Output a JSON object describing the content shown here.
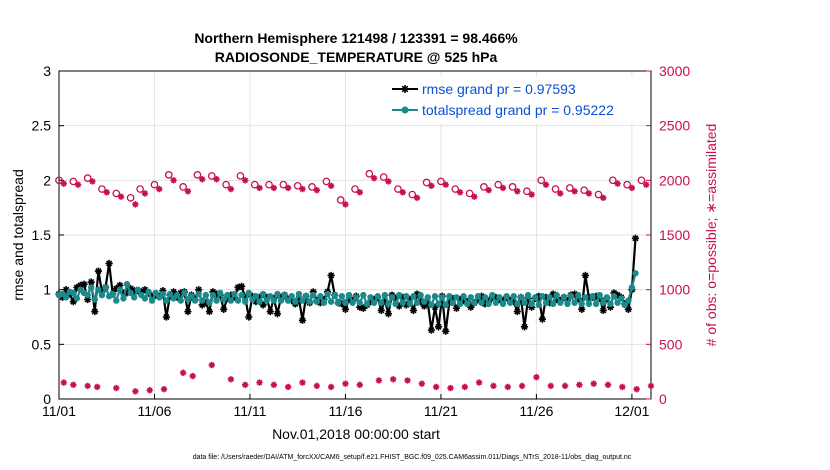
{
  "chart_data": {
    "type": "line",
    "title": "Northern Hemisphere 121498 / 123391 = 98.466%",
    "subtitle": "RADIOSONDE_TEMPERATURE @ 525 hPa",
    "xlabel": "Nov.01,2018 00:00:00 start",
    "ylabel": "rmse and totalspread",
    "ylabel_right": "# of obs: o=possible; ∗=assimilated",
    "footer": "data file: /Users/raeder/DAI/ATM_forcXX/CAM6_setup/f.e21.FHIST_BGC.f09_025.CAM6assim.011/Diags_NTrS_2018-11/obs_diag_output.nc",
    "xlim": [
      0,
      31
    ],
    "ylim": [
      0,
      3
    ],
    "ylim_right": [
      0,
      3000
    ],
    "x_ticks": [
      0,
      5,
      10,
      15,
      20,
      25,
      30
    ],
    "x_tick_labels": [
      "11/01",
      "11/06",
      "11/11",
      "11/16",
      "11/21",
      "11/26",
      "12/01"
    ],
    "y_ticks": [
      0,
      0.5,
      1,
      1.5,
      2,
      2.5,
      3
    ],
    "y_tick_labels": [
      "0",
      "0.5",
      "1",
      "1.5",
      "2",
      "2.5",
      "3"
    ],
    "y_ticks_right": [
      0,
      500,
      1000,
      1500,
      2000,
      2500,
      3000
    ],
    "y_tick_labels_right": [
      "0",
      "500",
      "1000",
      "1500",
      "2000",
      "2500",
      "3000"
    ],
    "grid": true,
    "legend_position": "top-right",
    "colors": {
      "rmse": "#000000",
      "totalspread": "#1a8a8a",
      "obs": "#c8104f",
      "legend_text": "#0a4fd6"
    },
    "series": [
      {
        "name": "rmse grand pr = 0.97593",
        "axis": "left",
        "marker": "asterisk",
        "values": [
          0.96,
          0.93,
          1.0,
          0.96,
          0.89,
          1.02,
          1.04,
          1.05,
          0.91,
          1.07,
          0.8,
          1.17,
          0.98,
          1.02,
          1.24,
          0.96,
          1.01,
          1.04,
          0.97,
          0.97,
          1.01,
          0.99,
          0.99,
          0.98,
          1.0,
          0.97,
          0.94,
          0.95,
          0.94,
          0.99,
          0.75,
          0.95,
          0.98,
          0.93,
          0.97,
          0.98,
          0.8,
          0.95,
          0.91,
          1.0,
          0.86,
          0.88,
          0.8,
          0.98,
          0.96,
          0.95,
          0.82,
          0.92,
          0.95,
          0.93,
          1.02,
          1.03,
          0.93,
          0.75,
          0.94,
          0.89,
          0.93,
          0.86,
          0.93,
          0.8,
          0.92,
          0.78,
          0.93,
          0.95,
          0.91,
          0.9,
          0.87,
          0.92,
          0.72,
          0.94,
          0.88,
          0.98,
          0.9,
          0.88,
          0.91,
          0.98,
          1.13,
          0.95,
          0.88,
          0.87,
          0.82,
          0.91,
          0.9,
          0.94,
          0.84,
          0.83,
          0.86,
          0.89,
          0.91,
          0.93,
          0.81,
          0.9,
          0.78,
          0.95,
          0.92,
          0.85,
          0.93,
          0.86,
          0.91,
          0.81,
          0.96,
          0.89,
          0.85,
          0.88,
          0.63,
          0.84,
          0.66,
          0.94,
          0.62,
          0.88,
          0.92,
          0.83,
          0.91,
          0.9,
          0.89,
          0.84,
          0.88,
          0.91,
          0.94,
          0.87,
          0.89,
          0.93,
          0.93,
          0.91,
          0.9,
          0.93,
          0.9,
          0.89,
          0.8,
          0.93,
          0.66,
          0.92,
          0.84,
          0.92,
          0.94,
          0.73,
          0.93,
          0.88,
          0.96,
          0.91,
          0.9,
          0.93,
          0.9,
          0.95,
          0.96,
          0.92,
          0.82,
          1.13,
          0.93,
          0.93,
          0.94,
          0.92,
          0.81,
          0.92,
          0.84,
          0.97,
          0.95,
          0.93,
          0.87,
          0.82,
          1.0,
          1.47
        ],
        "x_start": 0.0,
        "x_step": 0.1875
      },
      {
        "name": "totalspread grand pr = 0.95222",
        "axis": "left",
        "marker": "filled-circle",
        "values": [
          0.95,
          0.96,
          0.93,
          0.98,
          0.97,
          0.92,
          1.0,
          0.97,
          0.95,
          1.02,
          0.91,
          1.0,
          0.95,
          1.02,
          0.94,
          0.96,
          0.9,
          1.0,
          0.92,
          1.05,
          0.97,
          0.93,
          1.0,
          0.95,
          0.92,
          0.98,
          0.9,
          0.97,
          0.93,
          0.96,
          0.9,
          0.96,
          0.92,
          0.95,
          0.9,
          0.97,
          0.91,
          0.94,
          0.9,
          0.96,
          0.9,
          0.95,
          0.88,
          0.95,
          0.9,
          0.97,
          0.91,
          0.95,
          0.9,
          0.96,
          0.9,
          0.95,
          0.89,
          0.97,
          0.91,
          0.94,
          0.89,
          0.96,
          0.9,
          0.94,
          0.9,
          0.96,
          0.9,
          0.95,
          0.9,
          0.94,
          0.89,
          0.96,
          0.9,
          0.94,
          0.89,
          0.95,
          0.89,
          0.94,
          0.88,
          0.96,
          0.89,
          0.95,
          0.88,
          0.94,
          0.88,
          0.95,
          0.88,
          0.93,
          0.88,
          0.95,
          0.87,
          0.93,
          0.88,
          0.94,
          0.88,
          0.95,
          0.87,
          0.93,
          0.87,
          0.95,
          0.88,
          0.94,
          0.87,
          0.94,
          0.88,
          0.95,
          0.89,
          0.93,
          0.86,
          0.94,
          0.87,
          0.93,
          0.86,
          0.94,
          0.88,
          0.93,
          0.87,
          0.94,
          0.87,
          0.93,
          0.88,
          0.94,
          0.88,
          0.93,
          0.87,
          0.95,
          0.88,
          0.93,
          0.87,
          0.94,
          0.88,
          0.94,
          0.87,
          0.93,
          0.88,
          0.95,
          0.87,
          0.93,
          0.86,
          0.94,
          0.88,
          0.93,
          0.87,
          0.95,
          0.88,
          0.93,
          0.87,
          0.94,
          0.88,
          0.95,
          0.87,
          0.93,
          0.87,
          0.94,
          0.87,
          0.95,
          0.88,
          0.93,
          0.87,
          0.94,
          0.88,
          0.92,
          0.86,
          0.9,
          1.02,
          1.15
        ],
        "x_start": 0.0,
        "x_step": 0.1875
      },
      {
        "name": "obs possible",
        "axis": "right",
        "marker": "open-circle",
        "x": [
          0.0,
          0.75,
          1.5,
          2.25,
          3.0,
          3.75,
          4.25,
          5.0,
          5.75,
          6.5,
          7.25,
          8.0,
          8.75,
          9.5,
          10.25,
          11.0,
          11.75,
          12.5,
          13.25,
          14.0,
          14.75,
          15.5,
          16.25,
          17.0,
          17.75,
          18.5,
          19.25,
          20.0,
          20.75,
          21.5,
          22.25,
          23.0,
          23.75,
          24.5,
          25.25,
          26.0,
          26.75,
          27.5,
          28.25,
          29.0,
          29.75,
          30.5
        ],
        "values": [
          2000,
          1990,
          2020,
          1920,
          1880,
          1840,
          1920,
          1960,
          2050,
          1940,
          2050,
          2040,
          1960,
          2040,
          1960,
          1960,
          1960,
          1950,
          1940,
          1990,
          1820,
          1920,
          2060,
          2030,
          1920,
          1870,
          1980,
          1990,
          1920,
          1880,
          1940,
          1960,
          1940,
          1900,
          2000,
          1920,
          1930,
          1910,
          1870,
          2000,
          1960,
          2000
        ]
      },
      {
        "name": "obs assimilated",
        "axis": "right",
        "marker": "asterisk",
        "x": [
          0.25,
          1.0,
          1.75,
          2.5,
          3.25,
          4.0,
          4.5,
          5.25,
          6.0,
          6.75,
          7.5,
          8.25,
          9.0,
          9.75,
          10.5,
          11.25,
          12.0,
          12.75,
          13.5,
          14.25,
          15.0,
          15.75,
          16.5,
          17.25,
          18.0,
          18.75,
          19.5,
          20.25,
          21.0,
          21.75,
          22.5,
          23.25,
          24.0,
          24.75,
          25.5,
          26.25,
          27.0,
          27.75,
          28.5,
          29.25,
          30.0,
          30.75
        ],
        "values": [
          1970,
          1960,
          1990,
          1890,
          1850,
          1780,
          1880,
          1920,
          2000,
          1900,
          2010,
          2010,
          1920,
          2000,
          1930,
          1930,
          1930,
          1920,
          1910,
          1950,
          1780,
          1890,
          2020,
          1990,
          1890,
          1840,
          1950,
          1960,
          1890,
          1850,
          1910,
          1930,
          1900,
          1870,
          1960,
          1880,
          1900,
          1880,
          1840,
          1970,
          1930,
          1960
        ]
      },
      {
        "name": "obs low",
        "axis": "right",
        "marker": "asterisk",
        "x": [
          0.25,
          0.75,
          1.5,
          2.0,
          3.0,
          4.0,
          4.75,
          5.5,
          6.5,
          7.0,
          8.0,
          9.0,
          9.75,
          10.5,
          11.25,
          12.0,
          12.75,
          13.5,
          14.25,
          15.0,
          15.75,
          16.75,
          17.5,
          18.25,
          19.0,
          19.75,
          20.5,
          21.25,
          22.0,
          22.75,
          23.5,
          24.25,
          25.0,
          25.75,
          26.5,
          27.25,
          28.0,
          28.75,
          29.5,
          30.25,
          31.0
        ],
        "values": [
          150,
          130,
          120,
          110,
          100,
          70,
          80,
          90,
          240,
          210,
          310,
          180,
          130,
          150,
          130,
          110,
          150,
          120,
          110,
          140,
          130,
          170,
          180,
          170,
          140,
          110,
          100,
          110,
          150,
          120,
          110,
          120,
          200,
          120,
          120,
          130,
          140,
          130,
          110,
          90,
          120
        ]
      }
    ]
  }
}
